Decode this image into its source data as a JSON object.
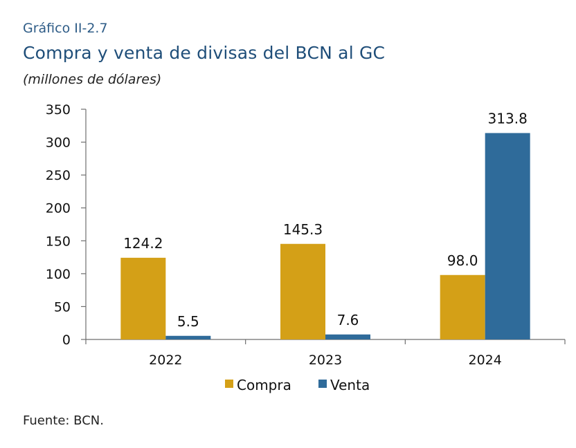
{
  "header": {
    "label": "Gráfico II-2.7",
    "title": "Compra y venta de divisas del BCN al GC",
    "subtitle": "(millones de dólares)"
  },
  "footer": {
    "source": "Fuente: BCN."
  },
  "chart_data": {
    "type": "bar",
    "categories": [
      "2022",
      "2023",
      "2024"
    ],
    "series": [
      {
        "name": "Compra",
        "values": [
          124.2,
          145.3,
          98.0
        ],
        "color": "#d4a017"
      },
      {
        "name": "Venta",
        "values": [
          5.5,
          7.6,
          313.8
        ],
        "color": "#2f6b9a"
      }
    ],
    "data_labels": [
      [
        "124.2",
        "145.3",
        "98.0"
      ],
      [
        "5.5",
        "7.6",
        "313.8"
      ]
    ],
    "ylim": [
      0,
      350
    ],
    "yticks": [
      0,
      50,
      100,
      150,
      200,
      250,
      300,
      350
    ],
    "grid": false,
    "legend": "bottom"
  }
}
